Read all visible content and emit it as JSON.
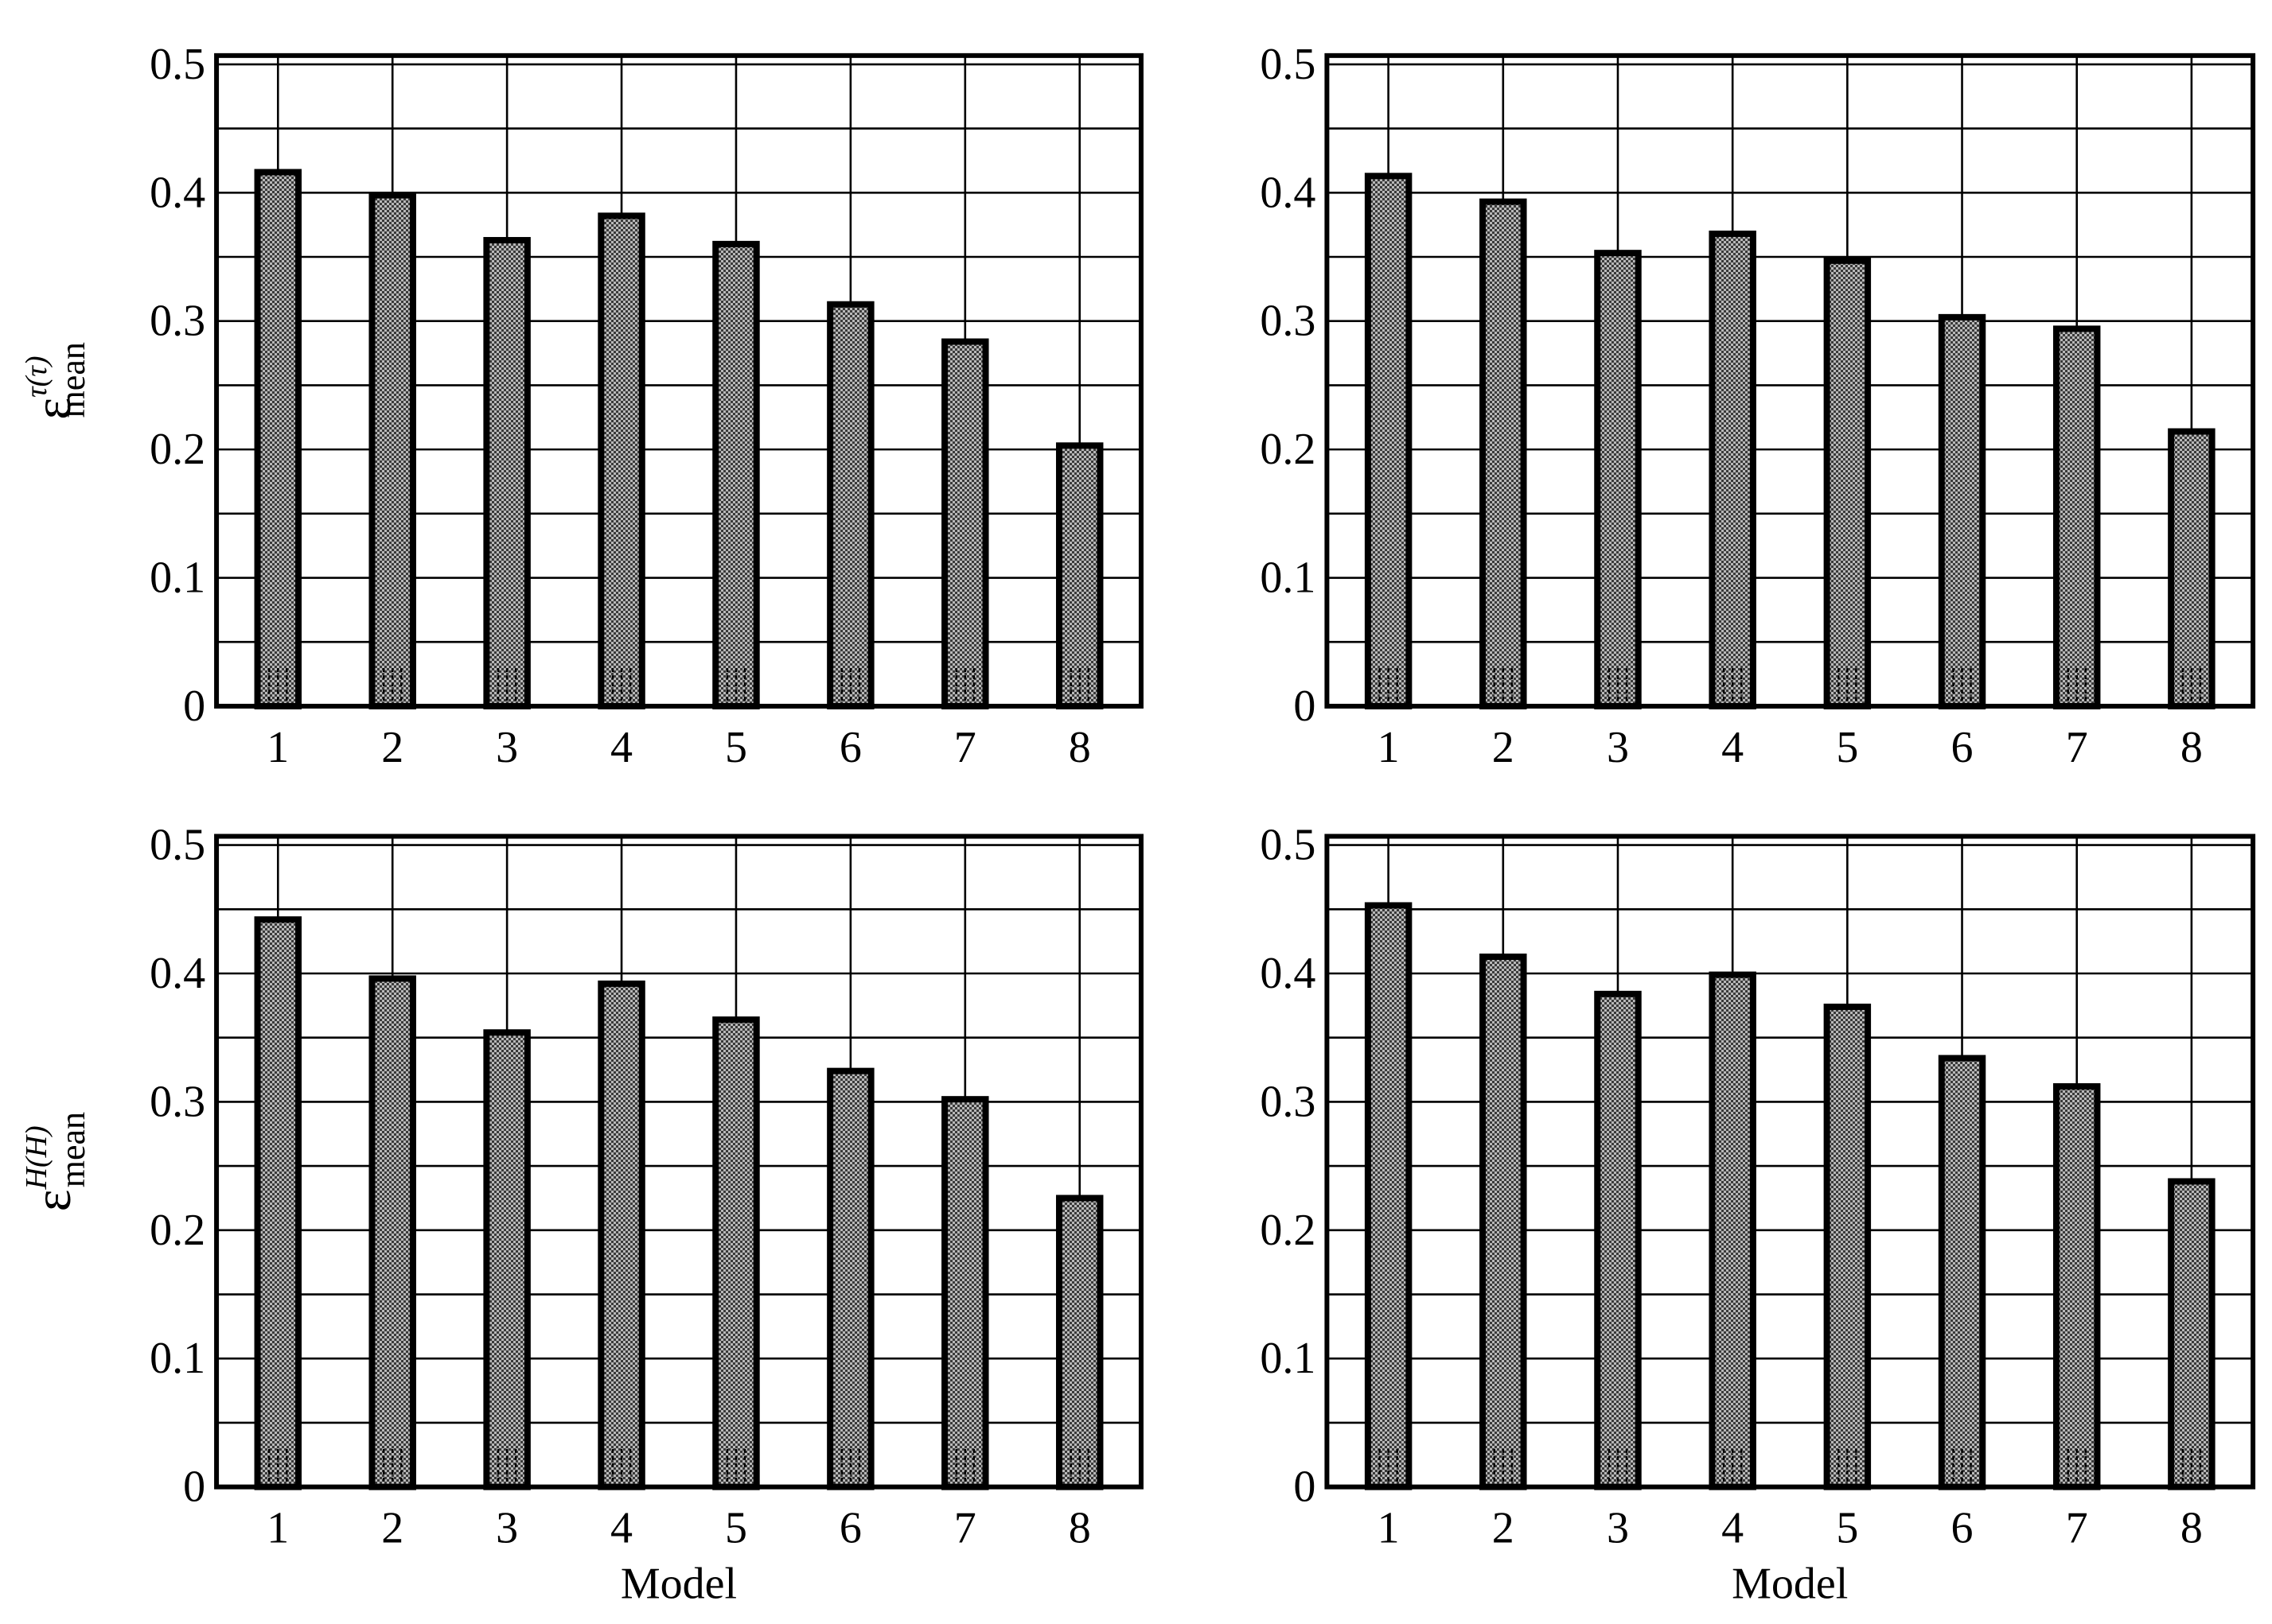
{
  "chart_data": [
    {
      "type": "bar",
      "categories": [
        "1",
        "2",
        "3",
        "4",
        "5",
        "6",
        "7",
        "8"
      ],
      "values": [
        0.416,
        0.398,
        0.363,
        0.382,
        0.36,
        0.313,
        0.284,
        0.203
      ],
      "ylabel": {
        "base": "ε",
        "sup": "τ(τ)",
        "sub": "mean"
      },
      "xlabel": "",
      "ylim": [
        0,
        0.5
      ],
      "yticks": [
        "0",
        "0.1",
        "0.2",
        "0.3",
        "0.4",
        "0.5"
      ],
      "grid": true
    },
    {
      "type": "bar",
      "categories": [
        "1",
        "2",
        "3",
        "4",
        "5",
        "6",
        "7",
        "8"
      ],
      "values": [
        0.413,
        0.393,
        0.353,
        0.368,
        0.347,
        0.303,
        0.294,
        0.214
      ],
      "xlabel": "",
      "ylim": [
        0,
        0.5
      ],
      "yticks": [
        "0",
        "0.1",
        "0.2",
        "0.3",
        "0.4",
        "0.5"
      ],
      "grid": true
    },
    {
      "type": "bar",
      "categories": [
        "1",
        "2",
        "3",
        "4",
        "5",
        "6",
        "7",
        "8"
      ],
      "values": [
        0.442,
        0.396,
        0.354,
        0.392,
        0.364,
        0.324,
        0.302,
        0.225
      ],
      "ylabel": {
        "base": "ε",
        "sup": "H(H)",
        "sub": "mean"
      },
      "xlabel": "Model",
      "ylim": [
        0,
        0.5
      ],
      "yticks": [
        "0",
        "0.1",
        "0.2",
        "0.3",
        "0.4",
        "0.5"
      ],
      "grid": true
    },
    {
      "type": "bar",
      "categories": [
        "1",
        "2",
        "3",
        "4",
        "5",
        "6",
        "7",
        "8"
      ],
      "values": [
        0.453,
        0.413,
        0.384,
        0.399,
        0.374,
        0.334,
        0.312,
        0.238
      ],
      "xlabel": "Model",
      "ylim": [
        0,
        0.5
      ],
      "yticks": [
        "0",
        "0.1",
        "0.2",
        "0.3",
        "0.4",
        "0.5"
      ],
      "grid": true
    }
  ]
}
